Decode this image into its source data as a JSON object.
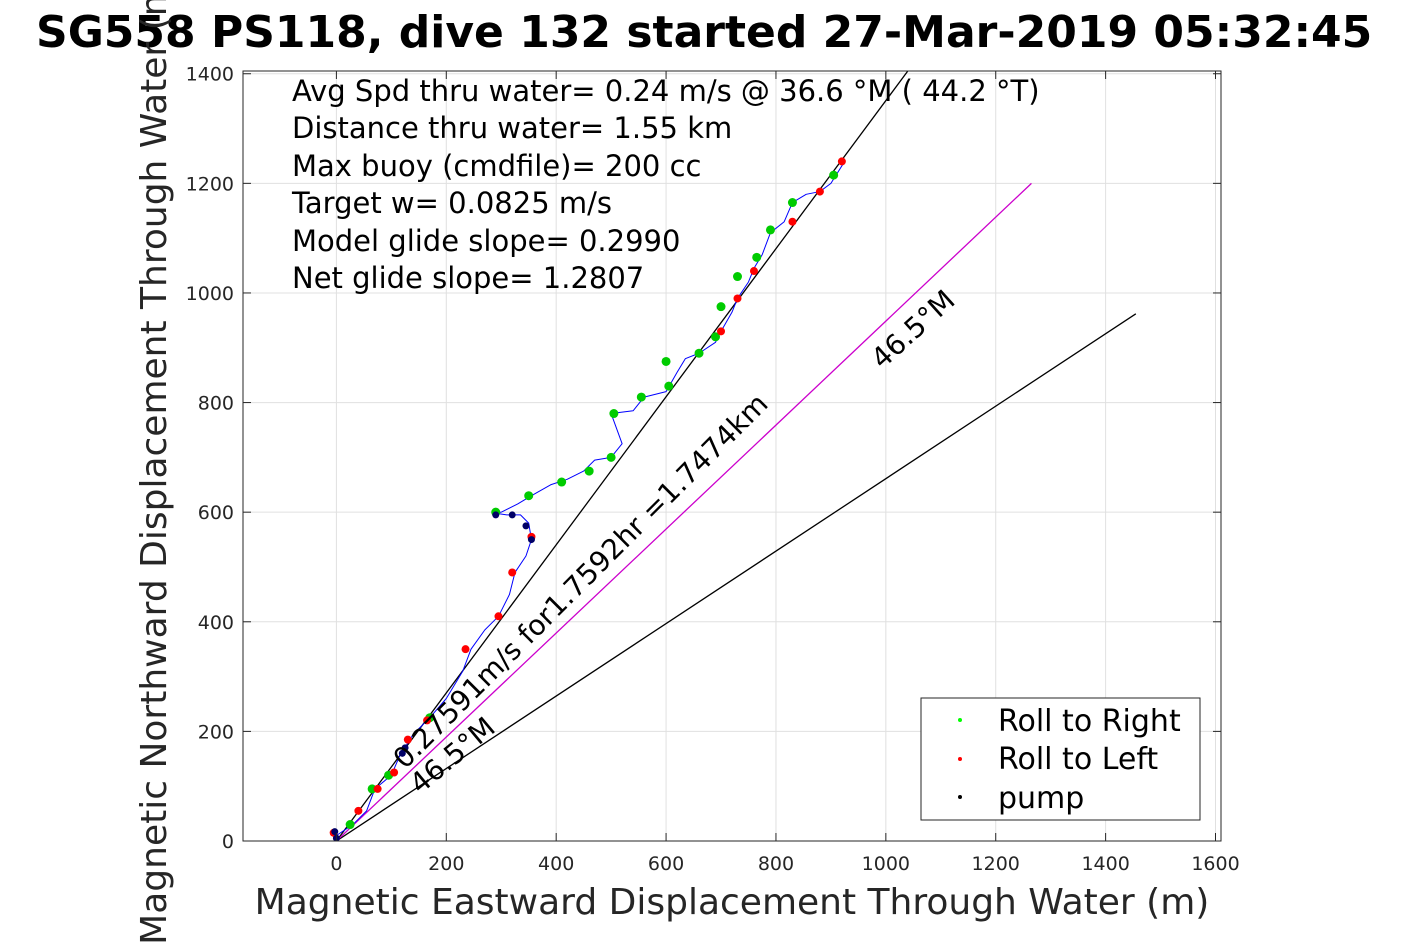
{
  "chart_data": {
    "type": "line",
    "title": "SG558 PS118, dive 132 started 27-Mar-2019 05:32:45",
    "xlabel": "Magnetic Eastward Displacement Through Water (m)",
    "ylabel": "Magnetic Northward Displacement Through Water (m)",
    "xlim": [
      -170,
      1610
    ],
    "ylim": [
      0,
      1405
    ],
    "xticks": [
      "0",
      "200",
      "400",
      "600",
      "800",
      "1000",
      "1200",
      "1400",
      "1600"
    ],
    "yticks": [
      "0",
      "200",
      "400",
      "600",
      "800",
      "1000",
      "1200",
      "1400"
    ],
    "grid": true,
    "info_lines": [
      "Avg Spd thru water=  0.24 m/s @  36.6 °M ( 44.2 °T)",
      "Distance thru water=  1.55 km",
      "Max buoy (cmdfile)= 200 cc",
      "Target w= 0.0825 m/s",
      "Model glide slope= 0.2990",
      "Net glide slope= 1.2807"
    ],
    "annotations": {
      "current_text": "0.27591m/s for1.7592hr =1.7474km",
      "heading_label_1": "46.5°M",
      "heading_label_2": "46.5°M"
    },
    "reference_lines": [
      {
        "name": "",
        "color": "#000000",
        "points": [
          [
            0,
            0
          ],
          [
            1040,
            1405
          ]
        ]
      },
      {
        "name": "",
        "color": "#000000",
        "points": [
          [
            0,
            0
          ],
          [
            1455,
            962
          ]
        ]
      },
      {
        "name": "",
        "color": "#cc00cc",
        "points": [
          [
            0,
            0
          ],
          [
            1265,
            1200
          ]
        ]
      }
    ],
    "track": {
      "color": "#0000ff",
      "points": [
        [
          -5,
          15
        ],
        [
          0,
          10
        ],
        [
          30,
          30
        ],
        [
          55,
          55
        ],
        [
          70,
          95
        ],
        [
          100,
          120
        ],
        [
          115,
          155
        ],
        [
          140,
          195
        ],
        [
          170,
          225
        ],
        [
          200,
          260
        ],
        [
          230,
          310
        ],
        [
          245,
          350
        ],
        [
          270,
          385
        ],
        [
          295,
          410
        ],
        [
          315,
          450
        ],
        [
          325,
          490
        ],
        [
          345,
          520
        ],
        [
          355,
          550
        ],
        [
          350,
          580
        ],
        [
          335,
          595
        ],
        [
          310,
          595
        ],
        [
          290,
          598
        ],
        [
          300,
          600
        ],
        [
          330,
          615
        ],
        [
          355,
          630
        ],
        [
          390,
          650
        ],
        [
          420,
          660
        ],
        [
          450,
          675
        ],
        [
          470,
          695
        ],
        [
          500,
          700
        ],
        [
          520,
          725
        ],
        [
          500,
          780
        ],
        [
          540,
          785
        ],
        [
          560,
          810
        ],
        [
          600,
          820
        ],
        [
          620,
          855
        ],
        [
          635,
          880
        ],
        [
          660,
          890
        ],
        [
          690,
          910
        ],
        [
          700,
          930
        ],
        [
          720,
          965
        ],
        [
          730,
          990
        ],
        [
          750,
          1020
        ],
        [
          760,
          1045
        ],
        [
          775,
          1070
        ],
        [
          790,
          1110
        ],
        [
          815,
          1130
        ],
        [
          830,
          1165
        ],
        [
          855,
          1180
        ],
        [
          880,
          1185
        ],
        [
          900,
          1200
        ],
        [
          925,
          1240
        ]
      ]
    },
    "roll_right": {
      "color": "#00cc00",
      "points": [
        [
          25,
          30
        ],
        [
          65,
          95
        ],
        [
          95,
          120
        ],
        [
          170,
          225
        ],
        [
          290,
          600
        ],
        [
          350,
          630
        ],
        [
          410,
          655
        ],
        [
          460,
          675
        ],
        [
          500,
          700
        ],
        [
          505,
          780
        ],
        [
          555,
          810
        ],
        [
          600,
          875
        ],
        [
          605,
          830
        ],
        [
          660,
          890
        ],
        [
          690,
          920
        ],
        [
          700,
          975
        ],
        [
          730,
          1030
        ],
        [
          765,
          1065
        ],
        [
          790,
          1115
        ],
        [
          830,
          1165
        ],
        [
          905,
          1215
        ]
      ]
    },
    "roll_left": {
      "color": "#ff0000",
      "points": [
        [
          -5,
          15
        ],
        [
          40,
          55
        ],
        [
          75,
          95
        ],
        [
          105,
          125
        ],
        [
          130,
          185
        ],
        [
          165,
          220
        ],
        [
          235,
          350
        ],
        [
          295,
          410
        ],
        [
          320,
          490
        ],
        [
          355,
          555
        ],
        [
          700,
          930
        ],
        [
          730,
          990
        ],
        [
          760,
          1040
        ],
        [
          830,
          1130
        ],
        [
          880,
          1185
        ],
        [
          920,
          1240
        ]
      ]
    },
    "pump": {
      "color": "#000066",
      "points": [
        [
          -3,
          17
        ],
        [
          0,
          5
        ],
        [
          120,
          160
        ],
        [
          125,
          170
        ],
        [
          290,
          595
        ],
        [
          320,
          595
        ],
        [
          345,
          575
        ],
        [
          355,
          550
        ]
      ]
    },
    "legend": {
      "placement": "bottom-right",
      "entries": [
        {
          "label": "Roll to Right",
          "color": "#00ff00"
        },
        {
          "label": "Roll to Left",
          "color": "#ff0000"
        },
        {
          "label": "pump",
          "color": "#000000"
        }
      ]
    }
  }
}
